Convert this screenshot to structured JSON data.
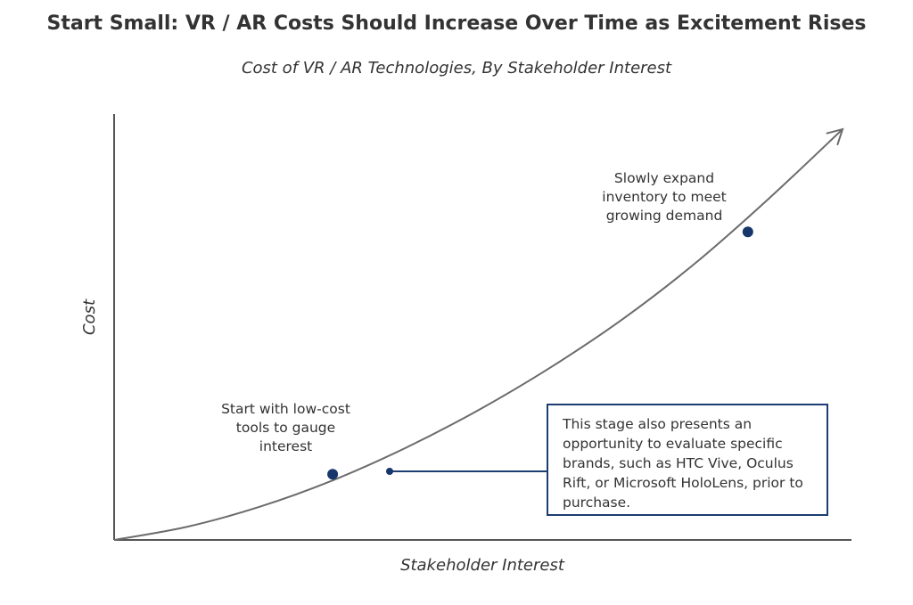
{
  "chart_data": {
    "type": "line",
    "title": "Start Small: VR / AR Costs Should Increase Over Time as Excitement Rises",
    "subtitle": "Cost of VR / AR Technologies, By Stakeholder Interest",
    "xlabel": "Stakeholder Interest",
    "ylabel": "Cost",
    "grid": false,
    "series": [
      {
        "x": [
          0,
          10,
          20,
          30,
          40,
          50,
          60,
          70,
          80,
          90,
          100
        ],
        "y": [
          0,
          3.2,
          8.1,
          14.5,
          22.4,
          31.6,
          42.1,
          54,
          67.7,
          83.3,
          100
        ]
      }
    ],
    "points": [
      {
        "x": 30,
        "y": 16
      },
      {
        "x": 87,
        "y": 75
      }
    ],
    "annotations": {
      "low": "Start with low-cost tools to gauge interest",
      "high": "Slowly expand inventory to meet growing demand",
      "callout": "This stage also presents an opportunity to evaluate specific brands, such as HTC Vive, Oculus Rift, or Microsoft HoloLens, prior to purchase."
    },
    "colors": {
      "curve": "#6b6b6b",
      "marker": "#17366b",
      "axis": "#555555",
      "callout_border": "#1c3d72"
    }
  }
}
